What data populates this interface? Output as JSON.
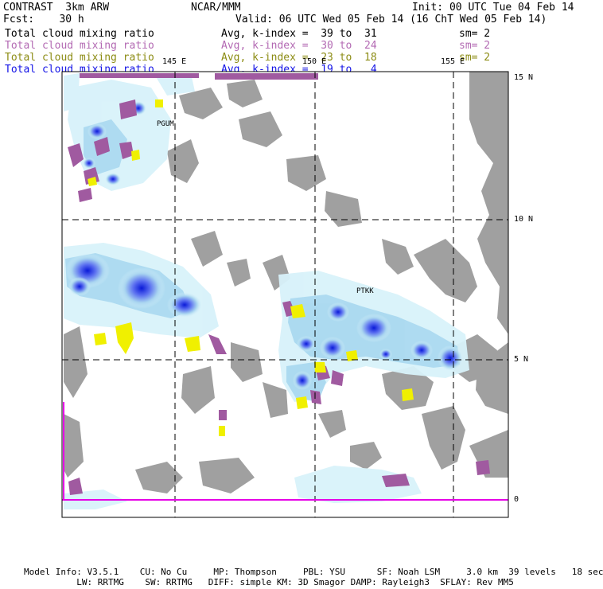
{
  "header": {
    "model": "CONTRAST  3km ARW",
    "org": "NCAR/MMM",
    "init": "Init: 00 UTC Tue 04 Feb 14",
    "fcst": "Fcst:    30 h",
    "valid": "Valid: 06 UTC Wed 05 Feb 14 (16 ChT Wed 05 Feb 14)"
  },
  "legend": [
    {
      "field": "Total cloud mixing ratio",
      "range": "Avg, k-index =  39 to  31",
      "sm": "sm= 2",
      "color": "#000000"
    },
    {
      "field": "Total cloud mixing ratio",
      "range": "Avg, k-index =  30 to  24",
      "sm": "sm= 2",
      "color": "#b36ab3"
    },
    {
      "field": "Total cloud mixing ratio",
      "range": "Avg, k-index =  23 to  18",
      "sm": "sm= 2",
      "color": "#8c8c14"
    },
    {
      "field": "Total cloud mixing ratio",
      "range": "Avg, k-index =  19 to   4",
      "sm": "",
      "color": "#1414e6"
    }
  ],
  "map": {
    "lon_labels": [
      "145 E",
      "150 E",
      "155 E"
    ],
    "lat_labels": [
      "15 N",
      "10 N",
      "5 N",
      "0"
    ],
    "stations": [
      "PGUM",
      "PTKK"
    ],
    "colors": {
      "land": "#a0a0a0",
      "cloud_light": "#d8f2fa",
      "cloud_mid": "#a8d8f0",
      "cloud_dark": "#1a2ee0",
      "high_cloud": "#a05aa0",
      "mid_cloud": "#f0f000",
      "equator": "#e600e6"
    }
  },
  "footer": {
    "line1": "Model Info: V3.5.1    CU: No Cu     MP: Thompson     PBL: YSU      SF: Noah LSM     3.0 km  39 levels   18 sec",
    "line2": "          LW: RRTMG    SW: RRTMG   DIFF: simple KM: 3D Smagor DAMP: Rayleigh3  SFLAY: Rev MM5"
  }
}
